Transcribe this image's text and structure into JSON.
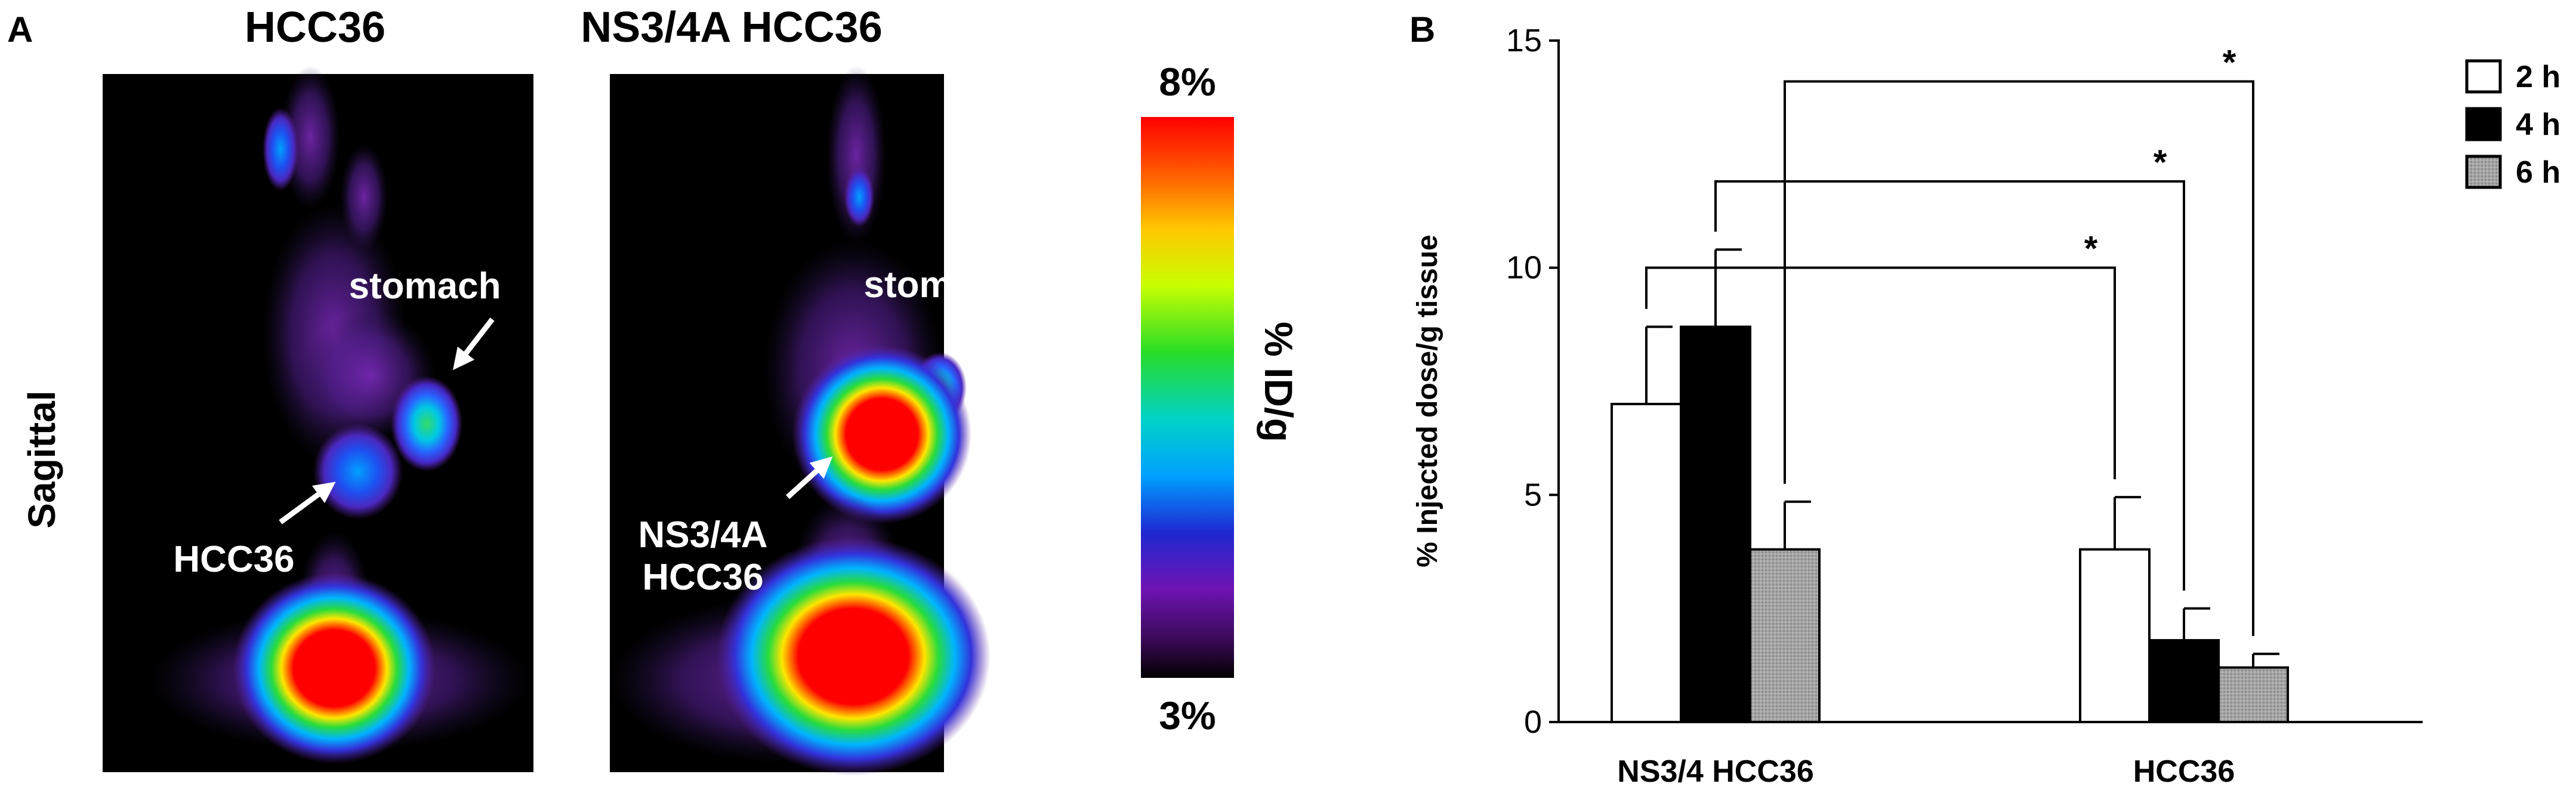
{
  "panel_a": {
    "letter": "A",
    "side_label": "Sagittal",
    "images": [
      {
        "title": "HCC36",
        "tumor_label": [
          "HCC36"
        ],
        "organ_label": "stomach"
      },
      {
        "title": "NS3/4A HCC36",
        "tumor_label": [
          "NS3/4A",
          "HCC36"
        ],
        "organ_label": "stomach"
      }
    ],
    "scale": {
      "max": "8%",
      "min": "3%",
      "label": "% ID/g"
    }
  },
  "panel_b": {
    "letter": "B"
  },
  "colors": {
    "bar_2h": "#ffffff",
    "bar_4h": "#000000",
    "bar_6h": "#9a9a9a",
    "axis": "#000000"
  },
  "chart_data": {
    "type": "bar",
    "ylabel": "% Injected dose/g tissue",
    "ylim": [
      0,
      15
    ],
    "yticks": [
      "0",
      "5",
      "10",
      "15"
    ],
    "categories": [
      "NS3/4 HCC36",
      "HCC36"
    ],
    "series": [
      {
        "name": "2 h",
        "values": [
          7.0,
          3.8
        ],
        "errors": [
          1.7,
          1.15
        ]
      },
      {
        "name": "4 h",
        "values": [
          8.7,
          1.8
        ],
        "errors": [
          1.7,
          0.7
        ]
      },
      {
        "name": "6 h",
        "values": [
          3.8,
          1.2
        ],
        "errors": [
          1.05,
          0.3
        ]
      }
    ],
    "legend_position": "top-right",
    "significance": [
      "*",
      "*",
      "*"
    ]
  }
}
